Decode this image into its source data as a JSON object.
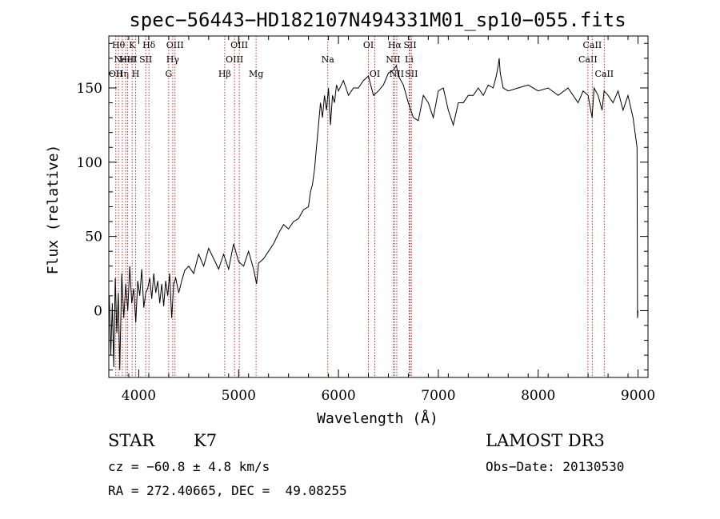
{
  "chart_data": {
    "type": "line",
    "title": "spec−56443−HD182107N494331M01_sp10−055.fits",
    "xlabel": "Wavelength (Å)",
    "ylabel": "Flux (relative)",
    "xlim": [
      3700,
      9100
    ],
    "ylim": [
      -45,
      185
    ],
    "xticks": [
      {
        "value": 4000,
        "label": "4000"
      },
      {
        "value": 5000,
        "label": "5000"
      },
      {
        "value": 6000,
        "label": "6000"
      },
      {
        "value": 7000,
        "label": "7000"
      },
      {
        "value": 8000,
        "label": "8000"
      },
      {
        "value": 9000,
        "label": "9000"
      }
    ],
    "yticks": [
      {
        "value": 0,
        "label": "0"
      },
      {
        "value": 50,
        "label": "50"
      },
      {
        "value": 100,
        "label": "100"
      },
      {
        "value": 150,
        "label": "150"
      }
    ],
    "grid": false,
    "legend": "none",
    "series": [
      {
        "color": "#000000",
        "x": [
          3705,
          3720,
          3735,
          3750,
          3765,
          3780,
          3795,
          3810,
          3830,
          3850,
          3870,
          3890,
          3910,
          3930,
          3950,
          3970,
          3990,
          4010,
          4030,
          4050,
          4070,
          4090,
          4110,
          4130,
          4150,
          4170,
          4190,
          4210,
          4230,
          4250,
          4270,
          4290,
          4310,
          4330,
          4350,
          4370,
          4400,
          4430,
          4460,
          4500,
          4550,
          4600,
          4650,
          4700,
          4750,
          4800,
          4850,
          4900,
          4950,
          5000,
          5050,
          5100,
          5150,
          5180,
          5200,
          5250,
          5300,
          5350,
          5400,
          5450,
          5500,
          5550,
          5600,
          5650,
          5700,
          5720,
          5740,
          5760,
          5780,
          5800,
          5820,
          5840,
          5860,
          5880,
          5900,
          5920,
          5940,
          5960,
          5980,
          6000,
          6050,
          6100,
          6150,
          6200,
          6250,
          6300,
          6350,
          6400,
          6450,
          6500,
          6550,
          6580,
          6600,
          6650,
          6700,
          6750,
          6800,
          6850,
          6900,
          6950,
          7000,
          7050,
          7100,
          7150,
          7200,
          7250,
          7300,
          7350,
          7400,
          7450,
          7500,
          7550,
          7580,
          7600,
          7610,
          7620,
          7650,
          7700,
          7800,
          7900,
          8000,
          8100,
          8200,
          8300,
          8400,
          8450,
          8500,
          8540,
          8560,
          8600,
          8640,
          8660,
          8700,
          8750,
          8800,
          8850,
          8900,
          8950,
          8990,
          8995,
          9000
        ],
        "y": [
          10,
          -30,
          5,
          -38,
          22,
          -15,
          12,
          -40,
          25,
          -5,
          18,
          0,
          30,
          5,
          15,
          -8,
          20,
          10,
          28,
          2,
          12,
          15,
          22,
          8,
          25,
          12,
          20,
          5,
          18,
          3,
          20,
          10,
          25,
          -5,
          18,
          22,
          12,
          20,
          27,
          30,
          25,
          38,
          30,
          42,
          35,
          28,
          38,
          28,
          45,
          33,
          30,
          40,
          28,
          18,
          32,
          35,
          40,
          45,
          52,
          58,
          55,
          60,
          62,
          68,
          70,
          80,
          85,
          95,
          110,
          125,
          140,
          130,
          145,
          135,
          150,
          125,
          145,
          140,
          152,
          148,
          155,
          145,
          150,
          150,
          155,
          158,
          145,
          148,
          152,
          160,
          162,
          165,
          158,
          152,
          140,
          130,
          128,
          145,
          140,
          130,
          148,
          150,
          135,
          125,
          140,
          140,
          145,
          145,
          150,
          145,
          152,
          150,
          158,
          165,
          170,
          160,
          150,
          148,
          150,
          152,
          148,
          150,
          145,
          150,
          140,
          148,
          145,
          130,
          150,
          145,
          135,
          148,
          145,
          140,
          148,
          135,
          145,
          130,
          110,
          -5,
          0
        ]
      }
    ],
    "lines": [
      {
        "x": 3770,
        "label": "OII",
        "row": 2
      },
      {
        "x": 3797,
        "label": "Hθ",
        "row": 0
      },
      {
        "x": 3835,
        "label": "Hη",
        "row": 2
      },
      {
        "x": 3869,
        "label": "NeIII",
        "row": 1
      },
      {
        "x": 3889,
        "label": "HeI",
        "row": 1
      },
      {
        "x": 3934,
        "label": "K",
        "row": 0
      },
      {
        "x": 3969,
        "label": "H",
        "row": 2
      },
      {
        "x": 4070,
        "label": "SII",
        "row": 1
      },
      {
        "x": 4102,
        "label": "Hδ",
        "row": 0
      },
      {
        "x": 4300,
        "label": "G",
        "row": 2
      },
      {
        "x": 4340,
        "label": "Hγ",
        "row": 1
      },
      {
        "x": 4363,
        "label": "OIII",
        "row": 0
      },
      {
        "x": 4861,
        "label": "Hβ",
        "row": 2
      },
      {
        "x": 4959,
        "label": "OIII",
        "row": 1
      },
      {
        "x": 5007,
        "label": "OIII",
        "row": 0
      },
      {
        "x": 5175,
        "label": "Mg",
        "row": 2
      },
      {
        "x": 5893,
        "label": "Na",
        "row": 1
      },
      {
        "x": 6300,
        "label": "OI",
        "row": 0
      },
      {
        "x": 6364,
        "label": "OI",
        "row": 2
      },
      {
        "x": 6548,
        "label": "NII",
        "row": 1
      },
      {
        "x": 6563,
        "label": "Hα",
        "row": 0
      },
      {
        "x": 6584,
        "label": "NII",
        "row": 2
      },
      {
        "x": 6708,
        "label": "Li",
        "row": 1
      },
      {
        "x": 6717,
        "label": "SII",
        "row": 0
      },
      {
        "x": 6731,
        "label": "SII",
        "row": 2
      },
      {
        "x": 8498,
        "label": "CaII",
        "row": 1
      },
      {
        "x": 8542,
        "label": "CaII",
        "row": 0
      },
      {
        "x": 8662,
        "label": "CaII",
        "row": 2
      }
    ]
  },
  "info": {
    "class_label": "STAR",
    "subclass": "K7",
    "survey": "LAMOST DR3",
    "cz": "cz = −60.8 ± 4.8 km/s",
    "obs_date": "Obs−Date: 20130530",
    "coords": "RA = 272.40665, DEC =  49.08255"
  }
}
